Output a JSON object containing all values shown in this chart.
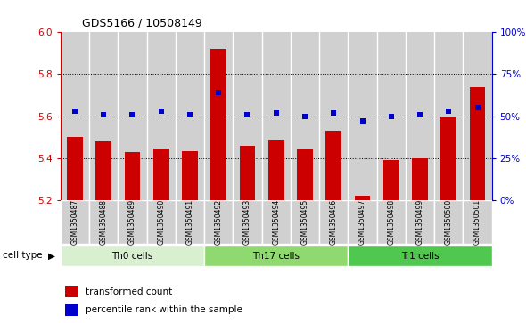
{
  "title": "GDS5166 / 10508149",
  "samples": [
    "GSM1350487",
    "GSM1350488",
    "GSM1350489",
    "GSM1350490",
    "GSM1350491",
    "GSM1350492",
    "GSM1350493",
    "GSM1350494",
    "GSM1350495",
    "GSM1350496",
    "GSM1350497",
    "GSM1350498",
    "GSM1350499",
    "GSM1350500",
    "GSM1350501"
  ],
  "transformed_count": [
    5.5,
    5.48,
    5.43,
    5.445,
    5.435,
    5.92,
    5.46,
    5.49,
    5.44,
    5.53,
    5.22,
    5.39,
    5.4,
    5.6,
    5.74
  ],
  "percentile_rank": [
    53,
    51,
    51,
    53,
    51,
    64,
    51,
    52,
    50,
    52,
    47,
    50,
    51,
    53,
    55
  ],
  "cell_groups": [
    {
      "label": "Th0 cells",
      "start": 0,
      "end": 5,
      "color": "#d8f0d0"
    },
    {
      "label": "Th17 cells",
      "start": 5,
      "end": 10,
      "color": "#90d870"
    },
    {
      "label": "Tr1 cells",
      "start": 10,
      "end": 15,
      "color": "#50c850"
    }
  ],
  "ylim_left": [
    5.2,
    6.0
  ],
  "ylim_right": [
    0,
    100
  ],
  "yticks_left": [
    5.2,
    5.4,
    5.6,
    5.8,
    6.0
  ],
  "yticks_right": [
    0,
    25,
    50,
    75,
    100
  ],
  "bar_color": "#cc0000",
  "dot_color": "#0000cc",
  "bar_width": 0.55,
  "bg_color": "#d0d0d0",
  "plot_bg": "#ffffff",
  "legend_items": [
    {
      "label": "transformed count",
      "color": "#cc0000"
    },
    {
      "label": "percentile rank within the sample",
      "color": "#0000cc"
    }
  ]
}
